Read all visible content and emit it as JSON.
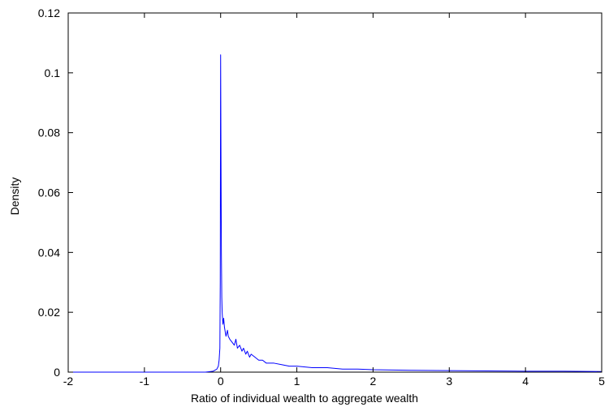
{
  "chart_data": {
    "type": "line",
    "title": "",
    "xlabel": "Ratio of individual wealth to aggregate wealth",
    "ylabel": "Density",
    "xlim": [
      -2,
      5
    ],
    "ylim": [
      0,
      0.12
    ],
    "xticks": [
      -2,
      -1,
      0,
      1,
      2,
      3,
      4,
      5
    ],
    "yticks": [
      0,
      0.02,
      0.04,
      0.06,
      0.08,
      0.1,
      0.12
    ],
    "xtick_labels": [
      "-2",
      "-1",
      "0",
      "1",
      "2",
      "3",
      "4",
      "5"
    ],
    "ytick_labels": [
      "0",
      "0.02",
      "0.04",
      "0.06",
      "0.08",
      "0.1",
      "0.12"
    ],
    "grid": false,
    "series": [
      {
        "color": "#0000ff",
        "x": [
          -2.0,
          -1.0,
          -0.5,
          -0.2,
          -0.1,
          -0.05,
          -0.03,
          -0.02,
          -0.01,
          -0.005,
          0.0,
          0.005,
          0.01,
          0.015,
          0.02,
          0.03,
          0.04,
          0.05,
          0.07,
          0.09,
          0.1,
          0.12,
          0.15,
          0.18,
          0.2,
          0.22,
          0.25,
          0.28,
          0.3,
          0.33,
          0.35,
          0.38,
          0.4,
          0.45,
          0.5,
          0.55,
          0.6,
          0.7,
          0.8,
          0.9,
          1.0,
          1.2,
          1.4,
          1.6,
          1.8,
          2.0,
          2.5,
          3.0,
          3.5,
          4.0,
          4.5,
          5.0
        ],
        "y": [
          0.0,
          0.0,
          0.0,
          0.0,
          0.0003,
          0.001,
          0.002,
          0.004,
          0.008,
          0.03,
          0.106,
          0.07,
          0.04,
          0.025,
          0.02,
          0.016,
          0.018,
          0.015,
          0.012,
          0.014,
          0.012,
          0.011,
          0.01,
          0.009,
          0.011,
          0.008,
          0.009,
          0.007,
          0.008,
          0.006,
          0.007,
          0.005,
          0.006,
          0.005,
          0.004,
          0.004,
          0.003,
          0.003,
          0.0025,
          0.002,
          0.002,
          0.0015,
          0.0015,
          0.001,
          0.001,
          0.0008,
          0.0006,
          0.0005,
          0.0004,
          0.0003,
          0.0003,
          0.0002
        ]
      }
    ]
  }
}
